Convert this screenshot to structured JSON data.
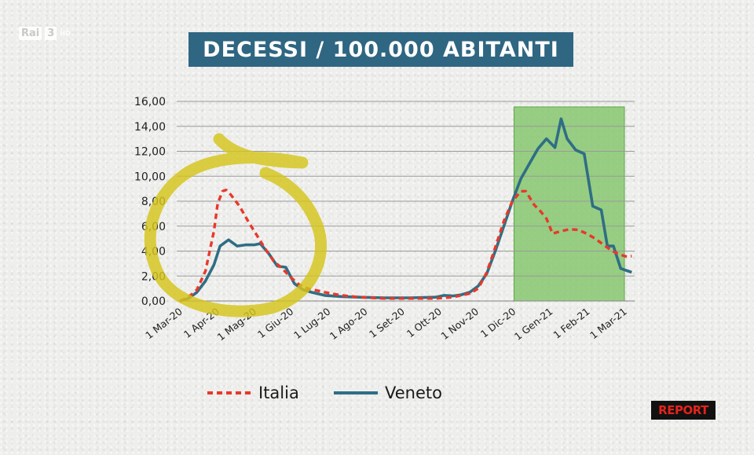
{
  "broadcast": {
    "channel": "Rai",
    "channel_number": "3",
    "quality": "HD",
    "program_logo": "REPORT"
  },
  "colors": {
    "italia": "#e8382b",
    "veneto": "#2f6e84",
    "highlight": "#7dc464",
    "annotation": "#d6c51a",
    "title_bg": "#2f6682"
  },
  "chart_data": {
    "type": "line",
    "title": "DECESSI / 100.000 ABITANTI",
    "xlabel": "",
    "ylabel": "",
    "ylim": [
      0,
      16
    ],
    "yticks": [
      "0,00",
      "2,00",
      "4,00",
      "6,00",
      "8,00",
      "10,00",
      "12,00",
      "14,00",
      "16,00"
    ],
    "xticks": [
      "1 Mar-20",
      "1 Apr-20",
      "1 Mag-20",
      "1 Giu-20",
      "1 Lug-20",
      "1 Ago-20",
      "1 Set-20",
      "1 Ott-20",
      "1 Nov-20",
      "1 Dic-20",
      "1 Gen-21",
      "1 Feb-21",
      "1 Mar-21"
    ],
    "grid": true,
    "legend": "bottom",
    "highlight_region": {
      "from": "2020-12-01",
      "to": "2021-03-01",
      "color": "green"
    },
    "annotation": "yellow circle around Mar–Jun 2020 peak",
    "series": [
      {
        "name": "Italia",
        "style": "dashed",
        "points": [
          [
            "2020-03-01",
            0.0
          ],
          [
            "2020-03-08",
            0.3
          ],
          [
            "2020-03-15",
            0.9
          ],
          [
            "2020-03-22",
            2.4
          ],
          [
            "2020-03-29",
            5.6
          ],
          [
            "2020-04-01",
            7.8
          ],
          [
            "2020-04-05",
            8.8
          ],
          [
            "2020-04-08",
            8.9
          ],
          [
            "2020-04-12",
            8.5
          ],
          [
            "2020-04-19",
            7.6
          ],
          [
            "2020-04-26",
            6.4
          ],
          [
            "2020-05-03",
            5.3
          ],
          [
            "2020-05-10",
            4.2
          ],
          [
            "2020-05-17",
            3.2
          ],
          [
            "2020-05-24",
            2.6
          ],
          [
            "2020-05-31",
            1.9
          ],
          [
            "2020-06-07",
            1.3
          ],
          [
            "2020-06-14",
            1.0
          ],
          [
            "2020-06-28",
            0.7
          ],
          [
            "2020-07-12",
            0.45
          ],
          [
            "2020-07-26",
            0.3
          ],
          [
            "2020-08-16",
            0.2
          ],
          [
            "2020-09-06",
            0.2
          ],
          [
            "2020-09-27",
            0.2
          ],
          [
            "2020-10-11",
            0.3
          ],
          [
            "2020-10-25",
            0.6
          ],
          [
            "2020-11-01",
            1.0
          ],
          [
            "2020-11-08",
            2.3
          ],
          [
            "2020-11-15",
            4.3
          ],
          [
            "2020-11-22",
            6.4
          ],
          [
            "2020-11-29",
            8.0
          ],
          [
            "2020-12-06",
            8.8
          ],
          [
            "2020-12-10",
            8.8
          ],
          [
            "2020-12-17",
            7.7
          ],
          [
            "2020-12-22",
            7.2
          ],
          [
            "2020-12-27",
            6.6
          ],
          [
            "2021-01-01",
            5.4
          ],
          [
            "2021-01-08",
            5.6
          ],
          [
            "2021-01-15",
            5.75
          ],
          [
            "2021-01-22",
            5.7
          ],
          [
            "2021-01-29",
            5.4
          ],
          [
            "2021-02-05",
            5.0
          ],
          [
            "2021-02-12",
            4.5
          ],
          [
            "2021-02-19",
            4.0
          ],
          [
            "2021-02-26",
            3.7
          ],
          [
            "2021-03-03",
            3.55
          ],
          [
            "2021-03-07",
            3.6
          ]
        ]
      },
      {
        "name": "Veneto",
        "style": "solid",
        "points": [
          [
            "2020-03-01",
            0.0
          ],
          [
            "2020-03-08",
            0.2
          ],
          [
            "2020-03-15",
            0.7
          ],
          [
            "2020-03-22",
            1.6
          ],
          [
            "2020-03-29",
            2.9
          ],
          [
            "2020-04-03",
            4.4
          ],
          [
            "2020-04-10",
            4.9
          ],
          [
            "2020-04-17",
            4.4
          ],
          [
            "2020-04-24",
            4.5
          ],
          [
            "2020-05-01",
            4.5
          ],
          [
            "2020-05-06",
            4.6
          ],
          [
            "2020-05-13",
            3.8
          ],
          [
            "2020-05-20",
            2.8
          ],
          [
            "2020-05-27",
            2.7
          ],
          [
            "2020-06-03",
            1.4
          ],
          [
            "2020-06-10",
            0.9
          ],
          [
            "2020-06-17",
            0.7
          ],
          [
            "2020-06-28",
            0.45
          ],
          [
            "2020-07-12",
            0.35
          ],
          [
            "2020-07-26",
            0.3
          ],
          [
            "2020-08-16",
            0.25
          ],
          [
            "2020-09-06",
            0.25
          ],
          [
            "2020-09-27",
            0.3
          ],
          [
            "2020-10-04",
            0.45
          ],
          [
            "2020-10-11",
            0.4
          ],
          [
            "2020-10-18",
            0.5
          ],
          [
            "2020-10-25",
            0.7
          ],
          [
            "2020-11-01",
            1.2
          ],
          [
            "2020-11-08",
            2.2
          ],
          [
            "2020-11-15",
            4.0
          ],
          [
            "2020-11-22",
            6.0
          ],
          [
            "2020-11-29",
            8.0
          ],
          [
            "2020-12-06",
            9.8
          ],
          [
            "2020-12-13",
            11.0
          ],
          [
            "2020-12-20",
            12.2
          ],
          [
            "2020-12-27",
            13.0
          ],
          [
            "2021-01-03",
            12.3
          ],
          [
            "2021-01-08",
            14.6
          ],
          [
            "2021-01-13",
            13.0
          ],
          [
            "2021-01-20",
            12.1
          ],
          [
            "2021-01-27",
            11.8
          ],
          [
            "2021-02-03",
            7.6
          ],
          [
            "2021-02-10",
            7.3
          ],
          [
            "2021-02-15",
            4.4
          ],
          [
            "2021-02-20",
            4.4
          ],
          [
            "2021-02-26",
            2.6
          ],
          [
            "2021-03-07",
            2.3
          ]
        ]
      }
    ]
  }
}
